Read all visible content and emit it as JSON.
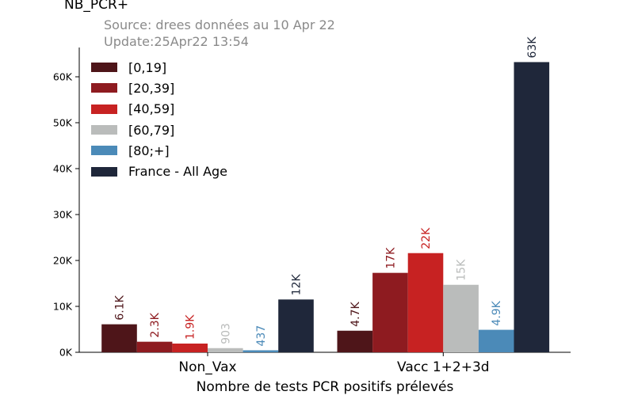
{
  "chart_data": {
    "type": "bar",
    "title": "NB_PCR+",
    "subtitle_lines": [
      "Source: drees données au 10 Apr 22",
      "Update:25Apr22 13:54"
    ],
    "xlabel": "Nombre de tests PCR positifs prélevés",
    "ylabel": "",
    "categories": [
      "Non_Vax",
      "Vacc 1+2+3d"
    ],
    "ylim": [
      0,
      66000
    ],
    "yticks": [
      0,
      10000,
      20000,
      30000,
      40000,
      50000,
      60000
    ],
    "ytick_labels": [
      "0K",
      "10K",
      "20K",
      "30K",
      "40K",
      "50K",
      "60K"
    ],
    "grid": false,
    "legend_position": "top-left",
    "series": [
      {
        "name": "[0,19]",
        "color": "#4e1519",
        "values": [
          6100,
          4700
        ],
        "labels": [
          "6.1K",
          "4.7K"
        ]
      },
      {
        "name": "[20,39]",
        "color": "#8e1b20",
        "values": [
          2300,
          17300
        ],
        "labels": [
          "2.3K",
          "17K"
        ]
      },
      {
        "name": "[40,59]",
        "color": "#c72222",
        "values": [
          1900,
          21600
        ],
        "labels": [
          "1.9K",
          "22K"
        ]
      },
      {
        "name": "[60,79]",
        "color": "#babcbb",
        "values": [
          903,
          14700
        ],
        "labels": [
          "903",
          "15K"
        ]
      },
      {
        "name": "[80;+]",
        "color": "#4b8ab8",
        "values": [
          437,
          4900
        ],
        "labels": [
          "437",
          "4.9K"
        ]
      },
      {
        "name": "France - All Age",
        "color": "#1f273a",
        "values": [
          11500,
          63200
        ],
        "labels": [
          "12K",
          "63K"
        ]
      }
    ]
  }
}
